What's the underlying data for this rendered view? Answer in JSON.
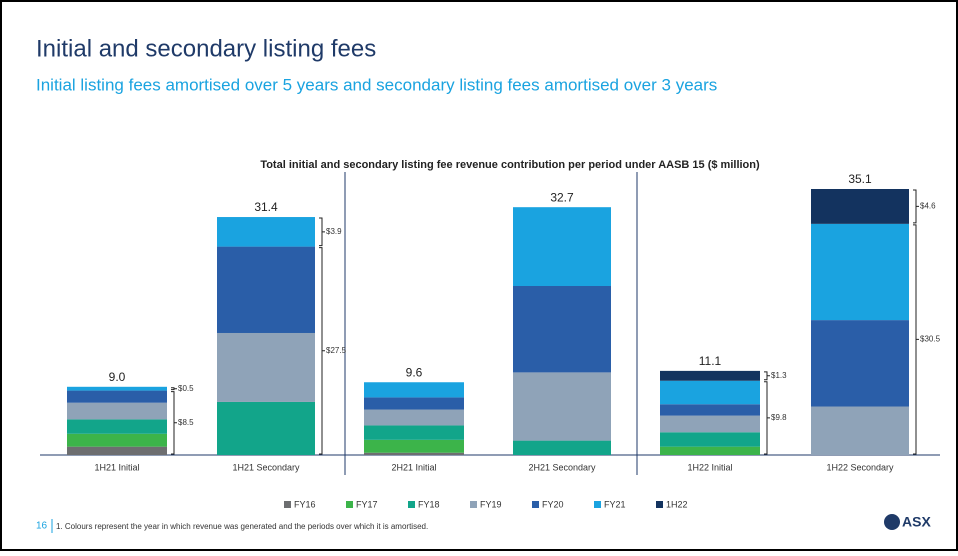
{
  "header": {
    "title": "Initial and secondary listing fees",
    "subtitle": "Initial listing fees amortised over 5 years and secondary listing fees amortised over 3 years"
  },
  "chart_data": {
    "type": "stacked_bar",
    "title": "Total initial and secondary listing fee revenue contribution per period under AASB 15 ($ million)",
    "categories": [
      "1H21 Initial",
      "1H21 Secondary",
      "2H21 Initial",
      "2H21 Secondary",
      "1H22 Initial",
      "1H22 Secondary"
    ],
    "series": [
      {
        "name": "FY16",
        "color": "#6d6e70",
        "values": [
          1.1,
          null,
          0.3,
          null,
          null,
          null
        ]
      },
      {
        "name": "FY17",
        "color": "#3cb44a",
        "values": [
          1.7,
          null,
          1.7,
          null,
          1.1,
          null
        ]
      },
      {
        "name": "FY18",
        "color": "#12a58a",
        "values": [
          1.9,
          7.0,
          1.9,
          1.9,
          1.9,
          null
        ]
      },
      {
        "name": "FY19",
        "color": "#8fa3b8",
        "values": [
          2.2,
          9.1,
          2.1,
          9.0,
          2.2,
          6.4
        ]
      },
      {
        "name": "FY20",
        "color": "#2a5ea8",
        "values": [
          1.6,
          11.4,
          1.6,
          11.4,
          1.5,
          11.4
        ]
      },
      {
        "name": "FY21",
        "color": "#1aa3e0",
        "values": [
          0.5,
          3.9,
          2.0,
          10.4,
          3.1,
          12.7
        ]
      },
      {
        "name": "1H22",
        "color": "#13335f",
        "values": [
          null,
          null,
          null,
          null,
          1.3,
          4.6
        ]
      }
    ],
    "totals": {
      "values": [
        9.0,
        31.4,
        9.6,
        32.7,
        11.1,
        35.1
      ],
      "value_labels": [
        "9.0",
        "31.4",
        "9.6",
        "32.7",
        "11.1",
        "35.1"
      ]
    },
    "brackets": [
      [
        "$0.5",
        "$8.5"
      ],
      [
        "$3.9",
        "$27.5"
      ],
      [],
      [],
      [
        "$1.3",
        "$9.8"
      ],
      [
        "$4.6",
        "$30.5"
      ]
    ],
    "footnote": "1. Colours represent the year in which revenue was generated and the periods over which it is amortised."
  },
  "footer": {
    "page": "16",
    "logo": "ASX"
  }
}
